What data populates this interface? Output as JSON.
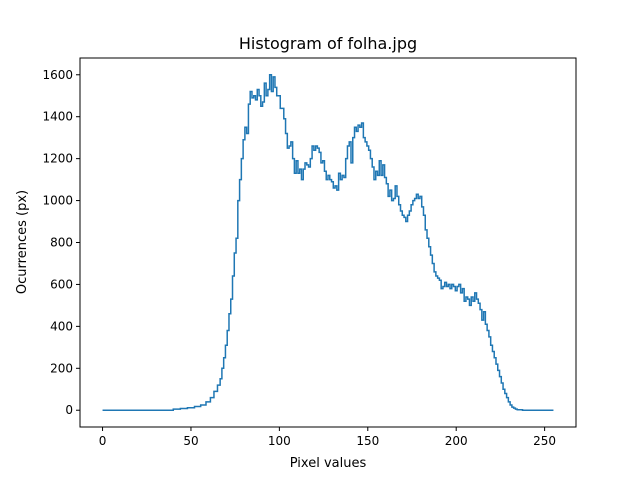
{
  "figure": {
    "title": "Histogram of folha.jpg"
  },
  "chart_data": {
    "type": "line",
    "drawstyle": "steps",
    "title": "Histogram of folha.jpg",
    "xlabel": "Pixel values",
    "ylabel": "Ocurrences (px)",
    "xlim": [
      -12.75,
      267.75
    ],
    "ylim": [
      -80,
      1680
    ],
    "xticks": [
      0,
      50,
      100,
      150,
      200,
      250
    ],
    "yticks": [
      0,
      200,
      400,
      600,
      800,
      1000,
      1200,
      1400,
      1600
    ],
    "grid": false,
    "line_color": "#1f77b4",
    "points": [
      [
        0,
        0
      ],
      [
        20,
        0
      ],
      [
        38,
        0
      ],
      [
        42,
        5
      ],
      [
        46,
        8
      ],
      [
        50,
        12
      ],
      [
        54,
        18
      ],
      [
        57,
        25
      ],
      [
        60,
        40
      ],
      [
        62,
        60
      ],
      [
        64,
        90
      ],
      [
        66,
        120
      ],
      [
        67,
        150
      ],
      [
        68,
        200
      ],
      [
        69,
        250
      ],
      [
        70,
        310
      ],
      [
        71,
        380
      ],
      [
        72,
        460
      ],
      [
        73,
        530
      ],
      [
        74,
        640
      ],
      [
        75,
        750
      ],
      [
        76,
        820
      ],
      [
        77,
        1000
      ],
      [
        78,
        1100
      ],
      [
        79,
        1200
      ],
      [
        80,
        1290
      ],
      [
        81,
        1350
      ],
      [
        82,
        1320
      ],
      [
        83,
        1460
      ],
      [
        84,
        1520
      ],
      [
        85,
        1490
      ],
      [
        86,
        1500
      ],
      [
        87,
        1480
      ],
      [
        88,
        1530
      ],
      [
        89,
        1500
      ],
      [
        90,
        1450
      ],
      [
        91,
        1470
      ],
      [
        92,
        1560
      ],
      [
        93,
        1500
      ],
      [
        94,
        1530
      ],
      [
        95,
        1600
      ],
      [
        96,
        1520
      ],
      [
        97,
        1590
      ],
      [
        98,
        1540
      ],
      [
        99,
        1500
      ],
      [
        100,
        1500
      ],
      [
        101,
        1440
      ],
      [
        102,
        1440
      ],
      [
        103,
        1390
      ],
      [
        104,
        1320
      ],
      [
        105,
        1250
      ],
      [
        106,
        1260
      ],
      [
        107,
        1280
      ],
      [
        108,
        1200
      ],
      [
        109,
        1130
      ],
      [
        110,
        1190
      ],
      [
        111,
        1130
      ],
      [
        112,
        1150
      ],
      [
        113,
        1100
      ],
      [
        114,
        1150
      ],
      [
        115,
        1180
      ],
      [
        116,
        1170
      ],
      [
        117,
        1160
      ],
      [
        118,
        1200
      ],
      [
        119,
        1260
      ],
      [
        120,
        1240
      ],
      [
        121,
        1260
      ],
      [
        122,
        1250
      ],
      [
        123,
        1230
      ],
      [
        124,
        1180
      ],
      [
        125,
        1190
      ],
      [
        126,
        1140
      ],
      [
        127,
        1100
      ],
      [
        128,
        1120
      ],
      [
        129,
        1100
      ],
      [
        130,
        1090
      ],
      [
        131,
        1060
      ],
      [
        132,
        1070
      ],
      [
        133,
        1050
      ],
      [
        134,
        1130
      ],
      [
        135,
        1100
      ],
      [
        136,
        1120
      ],
      [
        137,
        1110
      ],
      [
        138,
        1200
      ],
      [
        139,
        1260
      ],
      [
        140,
        1280
      ],
      [
        141,
        1180
      ],
      [
        142,
        1300
      ],
      [
        143,
        1350
      ],
      [
        144,
        1330
      ],
      [
        145,
        1360
      ],
      [
        146,
        1350
      ],
      [
        147,
        1370
      ],
      [
        148,
        1300
      ],
      [
        149,
        1280
      ],
      [
        150,
        1260
      ],
      [
        151,
        1240
      ],
      [
        152,
        1200
      ],
      [
        153,
        1160
      ],
      [
        154,
        1100
      ],
      [
        155,
        1140
      ],
      [
        156,
        1120
      ],
      [
        157,
        1190
      ],
      [
        158,
        1120
      ],
      [
        159,
        1170
      ],
      [
        160,
        1110
      ],
      [
        161,
        1080
      ],
      [
        162,
        1020
      ],
      [
        163,
        1050
      ],
      [
        164,
        1000
      ],
      [
        165,
        1010
      ],
      [
        166,
        1070
      ],
      [
        167,
        1020
      ],
      [
        168,
        980
      ],
      [
        169,
        950
      ],
      [
        170,
        930
      ],
      [
        171,
        920
      ],
      [
        172,
        900
      ],
      [
        173,
        930
      ],
      [
        174,
        950
      ],
      [
        175,
        980
      ],
      [
        176,
        1000
      ],
      [
        177,
        1010
      ],
      [
        178,
        1030
      ],
      [
        179,
        1010
      ],
      [
        180,
        1020
      ],
      [
        181,
        970
      ],
      [
        182,
        930
      ],
      [
        183,
        860
      ],
      [
        184,
        820
      ],
      [
        185,
        780
      ],
      [
        186,
        740
      ],
      [
        187,
        700
      ],
      [
        188,
        660
      ],
      [
        189,
        640
      ],
      [
        190,
        630
      ],
      [
        191,
        620
      ],
      [
        192,
        580
      ],
      [
        193,
        590
      ],
      [
        194,
        610
      ],
      [
        195,
        590
      ],
      [
        196,
        600
      ],
      [
        197,
        580
      ],
      [
        198,
        600
      ],
      [
        199,
        590
      ],
      [
        200,
        570
      ],
      [
        201,
        590
      ],
      [
        202,
        600
      ],
      [
        203,
        560
      ],
      [
        204,
        580
      ],
      [
        205,
        520
      ],
      [
        206,
        540
      ],
      [
        207,
        530
      ],
      [
        208,
        500
      ],
      [
        209,
        540
      ],
      [
        210,
        520
      ],
      [
        211,
        560
      ],
      [
        212,
        530
      ],
      [
        213,
        510
      ],
      [
        214,
        480
      ],
      [
        215,
        430
      ],
      [
        216,
        470
      ],
      [
        217,
        410
      ],
      [
        218,
        380
      ],
      [
        219,
        350
      ],
      [
        220,
        310
      ],
      [
        221,
        280
      ],
      [
        222,
        250
      ],
      [
        223,
        220
      ],
      [
        224,
        190
      ],
      [
        225,
        160
      ],
      [
        226,
        130
      ],
      [
        227,
        100
      ],
      [
        228,
        80
      ],
      [
        229,
        60
      ],
      [
        230,
        40
      ],
      [
        231,
        25
      ],
      [
        232,
        15
      ],
      [
        233,
        10
      ],
      [
        234,
        5
      ],
      [
        235,
        2
      ],
      [
        240,
        0
      ],
      [
        250,
        0
      ],
      [
        255,
        0
      ]
    ]
  }
}
